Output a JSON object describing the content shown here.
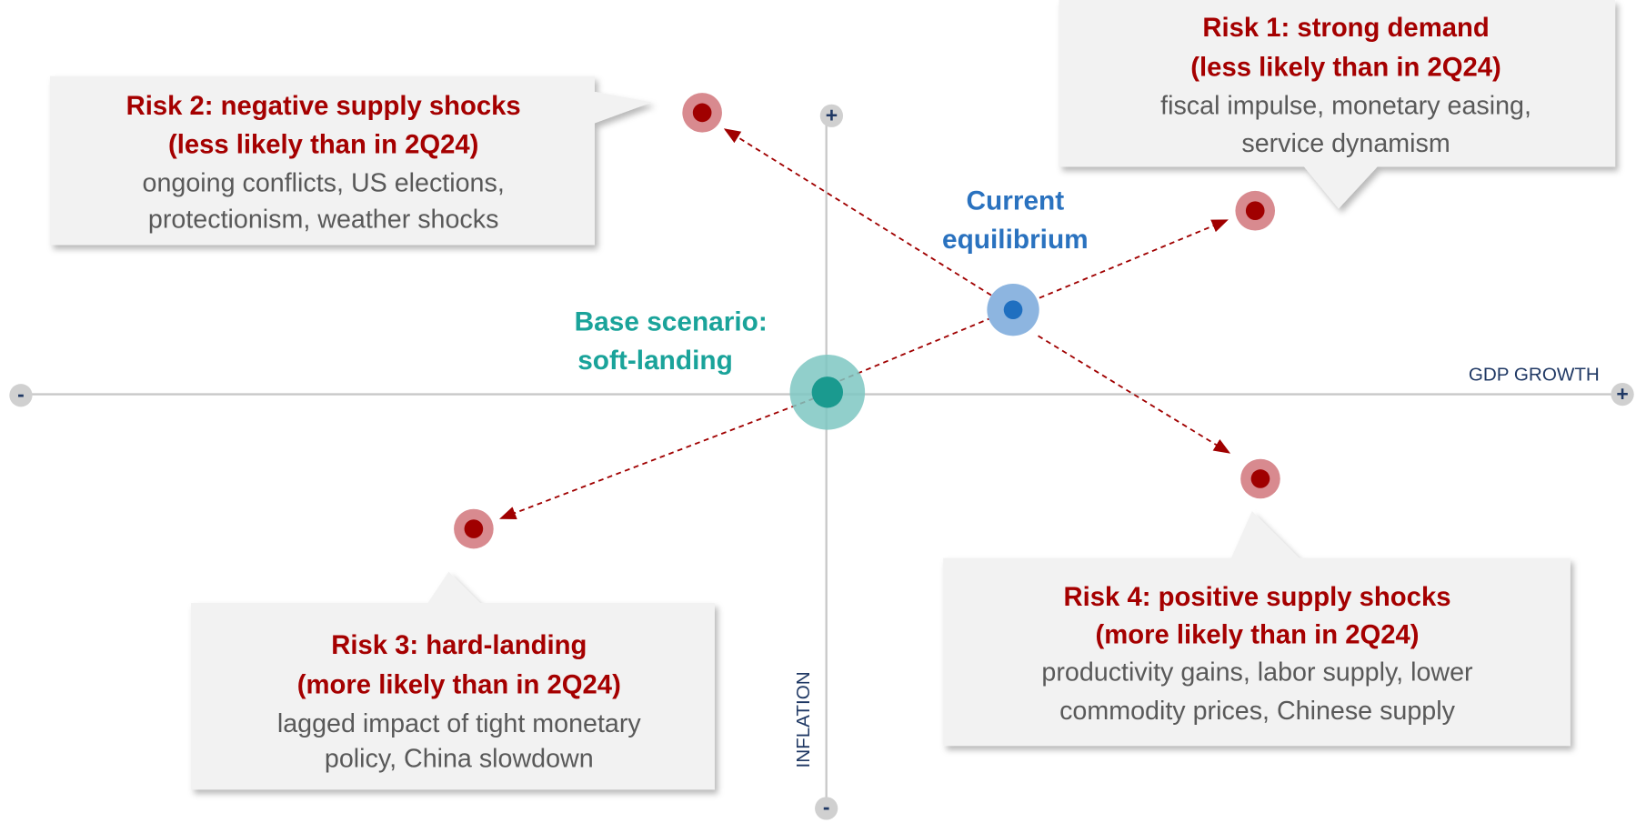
{
  "axes": {
    "x_label": "GDP GROWTH",
    "y_label": "INFLATION",
    "x_plus": "+",
    "x_minus": "-",
    "y_plus": "+",
    "y_minus": "-"
  },
  "nodes": {
    "current": {
      "label": [
        "Current",
        "equilibrium"
      ]
    },
    "base": {
      "label": [
        "Base scenario:",
        "soft-landing"
      ]
    }
  },
  "risks": [
    {
      "title": [
        "Risk 1: strong demand",
        "(less likely than in 2Q24)"
      ],
      "description": [
        "fiscal impulse, monetary easing,",
        "service dynamism"
      ]
    },
    {
      "title": [
        "Risk 2: negative supply shocks",
        "(less likely than in 2Q24)"
      ],
      "description": [
        "ongoing conflicts, US elections,",
        "protectionism, weather shocks"
      ]
    },
    {
      "title": [
        "Risk 3: hard-landing",
        "(more likely than in 2Q24)"
      ],
      "description": [
        "lagged impact of tight monetary",
        "policy, China slowdown"
      ]
    },
    {
      "title": [
        "Risk 4: positive supply shocks",
        "(more likely than in 2Q24)"
      ],
      "description": [
        "productivity gains, labor supply, lower",
        "commodity prices, Chinese supply"
      ]
    }
  ]
}
